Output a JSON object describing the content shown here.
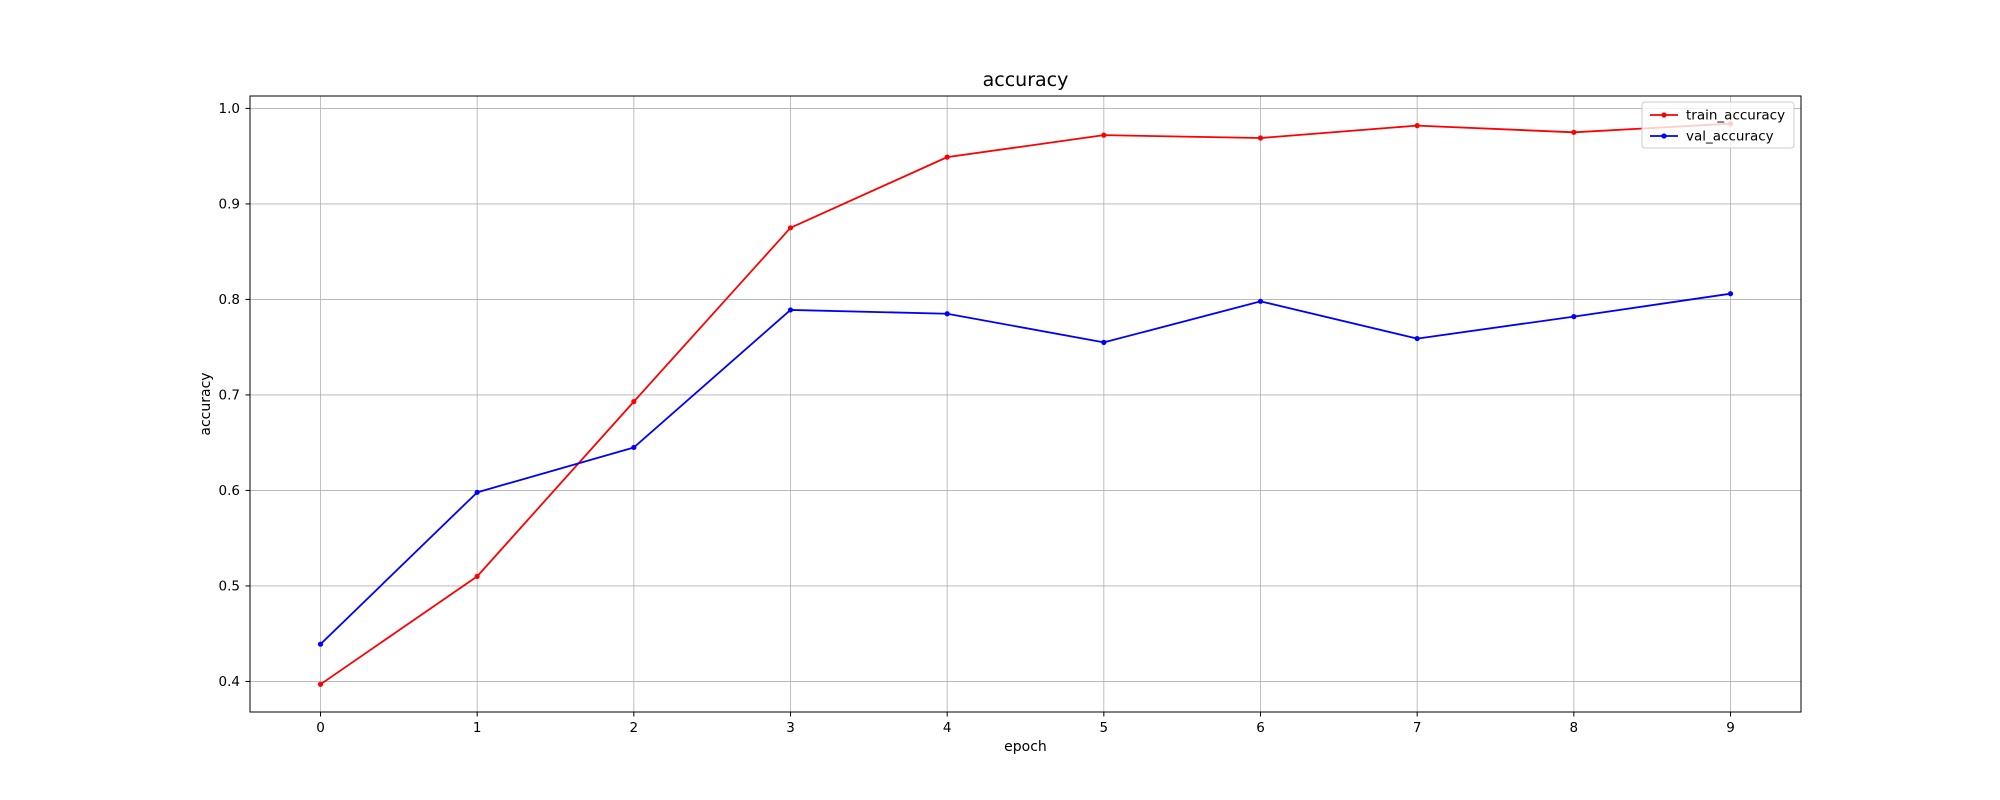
{
  "chart_data": {
    "type": "line",
    "title": "accuracy",
    "xlabel": "epoch",
    "ylabel": "accuracy",
    "x": [
      0,
      1,
      2,
      3,
      4,
      5,
      6,
      7,
      8,
      9
    ],
    "xlim": [
      -0.45,
      9.45
    ],
    "ylim": [
      0.368,
      1.013
    ],
    "xticks": [
      0,
      1,
      2,
      3,
      4,
      5,
      6,
      7,
      8,
      9
    ],
    "yticks": [
      0.4,
      0.5,
      0.6,
      0.7,
      0.8,
      0.9,
      1.0
    ],
    "ytick_labels": [
      "0.4",
      "0.5",
      "0.6",
      "0.7",
      "0.8",
      "0.9",
      "1.0"
    ],
    "grid": true,
    "legend_position": "top-right",
    "series": [
      {
        "name": "train_accuracy",
        "color": "#ff0000",
        "marker": "dot",
        "values": [
          0.397,
          0.51,
          0.693,
          0.875,
          0.949,
          0.972,
          0.969,
          0.982,
          0.975,
          0.984
        ]
      },
      {
        "name": "val_accuracy",
        "color": "#0000ff",
        "marker": "dot",
        "values": [
          0.439,
          0.598,
          0.645,
          0.789,
          0.785,
          0.755,
          0.798,
          0.759,
          0.782,
          0.806
        ]
      }
    ]
  }
}
